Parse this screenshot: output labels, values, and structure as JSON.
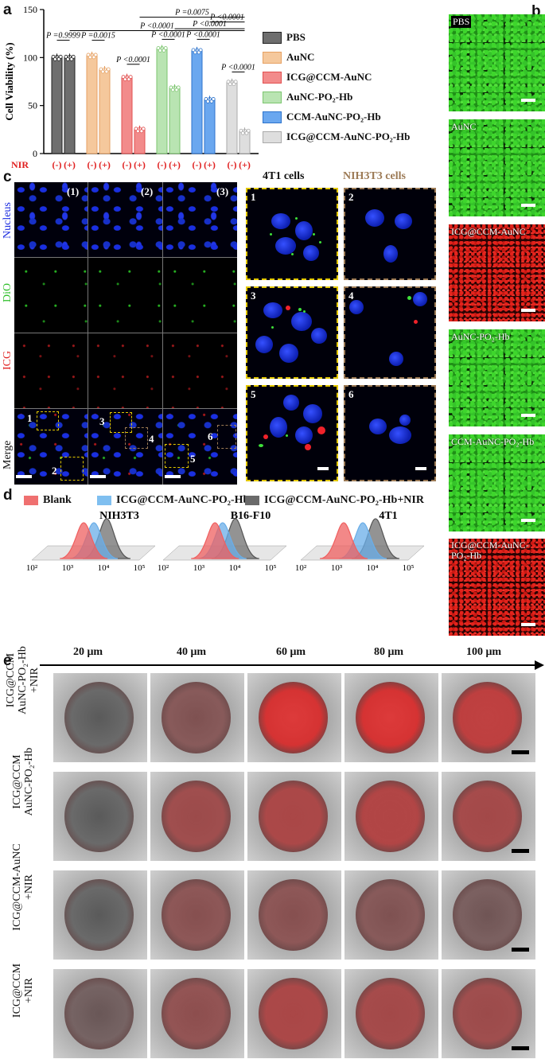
{
  "panel_labels": {
    "a": "a",
    "b": "b",
    "c": "c",
    "d": "d",
    "e": "e"
  },
  "panel_a": {
    "ylabel": "Cell Viability (%)",
    "yticks": [
      "0",
      "50",
      "100",
      "150"
    ],
    "nir_label": "NIR",
    "nir_ticks": [
      "(-)",
      "(+)"
    ],
    "pvalues": [
      "P =0.9999",
      "P =0.0015",
      "P <0.0001",
      "P <0.0001",
      "P <0.0001",
      "P <0.0001",
      "P <0.0001",
      "P <0.0001",
      "P =0.0075",
      "P <0.0001"
    ],
    "legend": [
      "PBS",
      "AuNC",
      "ICG@CCM-AuNC",
      "AuNC-PO₂-Hb",
      "CCM-AuNC-PO₂-Hb",
      "ICG@CCM-AuNC-PO₂-Hb"
    ],
    "colors": {
      "PBS": "#6e6e6e",
      "AuNC": "#f5c89c",
      "ICG": "#f28b8b",
      "AuNCPO2": "#b9e4b2",
      "CCM": "#6aa7ef",
      "ICGall": "#dedede"
    }
  },
  "chart_data": {
    "type": "bar",
    "title": "",
    "xlabel": "",
    "ylabel": "Cell Viability (%)",
    "ylim": [
      0,
      150
    ],
    "categories": [
      "PBS",
      "AuNC",
      "ICG@CCM-AuNC",
      "AuNC-PO₂-Hb",
      "CCM-AuNC-PO₂-Hb",
      "ICG@CCM-AuNC-PO₂-Hb"
    ],
    "series": [
      {
        "name": "(-)",
        "values": [
          100,
          102,
          79,
          109,
          107,
          74
        ]
      },
      {
        "name": "(+)",
        "values": [
          100,
          87,
          25,
          68,
          56,
          23
        ]
      }
    ]
  },
  "panel_b": {
    "labels": [
      "PBS",
      "AuNC",
      "ICG@CCM-AuNC",
      "AuNC-PO₂-Hb",
      "CCM-AuNC-PO₂-Hb",
      "ICG@CCM-AuNC-PO₂-Hb"
    ]
  },
  "panel_c": {
    "col_labels": [
      "(1)",
      "(2)",
      "(3)"
    ],
    "row_labels": [
      "Nucleus",
      "DiO",
      "ICG",
      "Merge"
    ],
    "zoom_headers": [
      "4T1 cells",
      "NIH3T3 cells"
    ],
    "zoom_numbers": [
      "1",
      "2",
      "3",
      "4",
      "5",
      "6"
    ],
    "box_numbers": [
      "1",
      "2",
      "3",
      "4",
      "5",
      "6"
    ]
  },
  "panel_d": {
    "legend": [
      "Blank",
      "ICG@CCM-AuNC-PO₂-Hb",
      "ICG@CCM-AuNC-PO₂-Hb+NIR"
    ],
    "titles": [
      "NIH3T3",
      "B16-F10",
      "4T1"
    ],
    "xticks": [
      "10²",
      "10³",
      "10⁴",
      "10⁵"
    ]
  },
  "panel_e": {
    "depths": [
      "20 μm",
      "40 μm",
      "60 μm",
      "80 μm",
      "100 μm"
    ],
    "rows": [
      {
        "line1": "ICG@CCM",
        "line2": "AuNC-PO₂-Hb",
        "line3": "+NIR",
        "intensity": [
          0,
          0.25,
          0.9,
          0.9,
          0.7
        ]
      },
      {
        "line1": "ICG@CCM",
        "line2": "AuNC-PO₂-Hb",
        "line3": "",
        "intensity": [
          0,
          0.45,
          0.55,
          0.6,
          0.5
        ]
      },
      {
        "line1": "ICG@CCM-AuNC",
        "line2": "+NIR",
        "line3": "",
        "intensity": [
          0,
          0.3,
          0.3,
          0.25,
          0.15
        ]
      },
      {
        "line1": "ICG@CCM",
        "line2": "+NIR",
        "line3": "",
        "intensity": [
          0.1,
          0.35,
          0.55,
          0.5,
          0.45
        ]
      }
    ]
  }
}
